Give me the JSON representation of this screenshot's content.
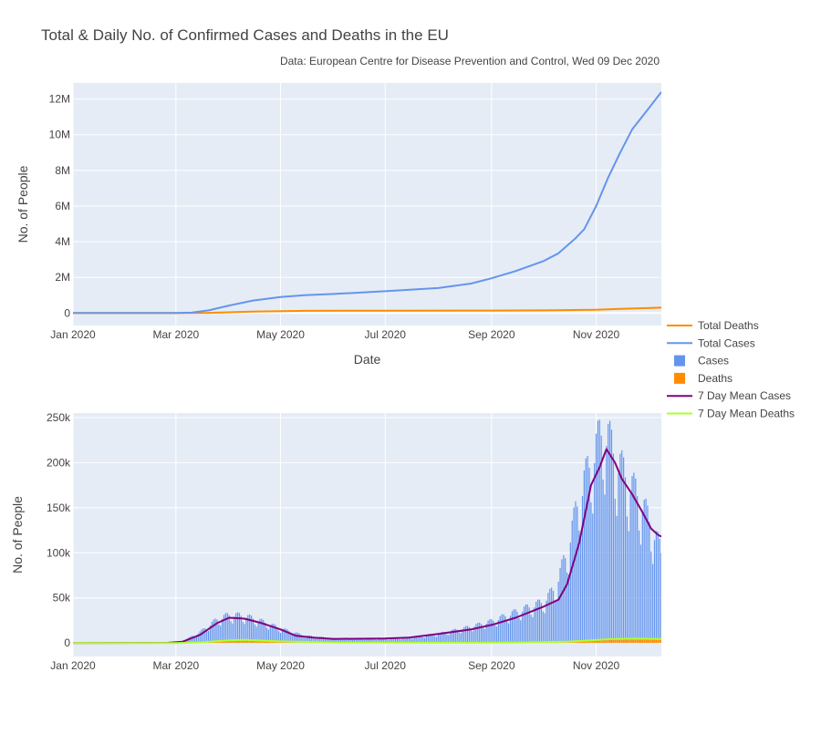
{
  "title": "Total & Daily No. of Confirmed Cases and Deaths in the EU",
  "subtitle": "Data: European Centre for Disease Prevention and Control, Wed 09 Dec 2020",
  "colors": {
    "plot_bg": "#E5ECF6",
    "grid": "#FFFFFF",
    "total_deaths": "#FF8C00",
    "total_cases": "#6495ED",
    "cases_bar": "#6495ED",
    "deaths_bar": "#FF8C00",
    "mean_cases": "#800080",
    "mean_deaths": "#ADFF2F"
  },
  "chart_data": [
    {
      "type": "line",
      "xlabel": "Date",
      "ylabel": "No. of People",
      "xlim": [
        "2020-01-01",
        "2020-12-09"
      ],
      "ylim": [
        -700000,
        12900000
      ],
      "x_ticks": [
        {
          "date": "2020-01-01",
          "label": "Jan 2020"
        },
        {
          "date": "2020-03-01",
          "label": "Mar 2020"
        },
        {
          "date": "2020-05-01",
          "label": "May 2020"
        },
        {
          "date": "2020-07-01",
          "label": "Jul 2020"
        },
        {
          "date": "2020-09-01",
          "label": "Sep 2020"
        },
        {
          "date": "2020-11-01",
          "label": "Nov 2020"
        }
      ],
      "y_ticks": [
        {
          "value": 0,
          "label": "0"
        },
        {
          "value": 2000000,
          "label": "2M"
        },
        {
          "value": 4000000,
          "label": "4M"
        },
        {
          "value": 6000000,
          "label": "6M"
        },
        {
          "value": 8000000,
          "label": "8M"
        },
        {
          "value": 10000000,
          "label": "10M"
        },
        {
          "value": 12000000,
          "label": "12M"
        }
      ],
      "series": [
        {
          "name": "Total Deaths",
          "color": "#FF8C00",
          "points": [
            [
              "2020-01-01",
              0
            ],
            [
              "2020-03-01",
              100
            ],
            [
              "2020-03-20",
              10000
            ],
            [
              "2020-04-15",
              80000
            ],
            [
              "2020-05-15",
              125000
            ],
            [
              "2020-07-01",
              135000
            ],
            [
              "2020-09-01",
              140000
            ],
            [
              "2020-10-01",
              150000
            ],
            [
              "2020-10-15",
              165000
            ],
            [
              "2020-11-01",
              185000
            ],
            [
              "2020-11-15",
              230000
            ],
            [
              "2020-12-01",
              275000
            ],
            [
              "2020-12-09",
              300000
            ]
          ]
        },
        {
          "name": "Total Cases",
          "color": "#6495ED",
          "points": [
            [
              "2020-01-01",
              0
            ],
            [
              "2020-03-01",
              2000
            ],
            [
              "2020-03-10",
              20000
            ],
            [
              "2020-03-20",
              150000
            ],
            [
              "2020-04-01",
              420000
            ],
            [
              "2020-04-15",
              700000
            ],
            [
              "2020-05-01",
              900000
            ],
            [
              "2020-05-15",
              1000000
            ],
            [
              "2020-06-01",
              1070000
            ],
            [
              "2020-07-01",
              1220000
            ],
            [
              "2020-08-01",
              1400000
            ],
            [
              "2020-08-20",
              1650000
            ],
            [
              "2020-09-01",
              1950000
            ],
            [
              "2020-09-15",
              2350000
            ],
            [
              "2020-10-01",
              2900000
            ],
            [
              "2020-10-10",
              3350000
            ],
            [
              "2020-10-20",
              4200000
            ],
            [
              "2020-10-25",
              4700000
            ],
            [
              "2020-11-01",
              6000000
            ],
            [
              "2020-11-08",
              7600000
            ],
            [
              "2020-11-15",
              9000000
            ],
            [
              "2020-11-22",
              10300000
            ],
            [
              "2020-12-01",
              11400000
            ],
            [
              "2020-12-09",
              12400000
            ]
          ]
        }
      ]
    },
    {
      "type": "bar",
      "xlabel": "",
      "ylabel": "No. of People",
      "xlim": [
        "2020-01-01",
        "2020-12-09"
      ],
      "ylim": [
        -15000,
        255000
      ],
      "x_ticks": [
        {
          "date": "2020-01-01",
          "label": "Jan 2020"
        },
        {
          "date": "2020-03-01",
          "label": "Mar 2020"
        },
        {
          "date": "2020-05-01",
          "label": "May 2020"
        },
        {
          "date": "2020-07-01",
          "label": "Jul 2020"
        },
        {
          "date": "2020-09-01",
          "label": "Sep 2020"
        },
        {
          "date": "2020-11-01",
          "label": "Nov 2020"
        }
      ],
      "y_ticks": [
        {
          "value": 0,
          "label": "0"
        },
        {
          "value": 50000,
          "label": "50k"
        },
        {
          "value": 100000,
          "label": "100k"
        },
        {
          "value": 150000,
          "label": "150k"
        },
        {
          "value": 200000,
          "label": "200k"
        },
        {
          "value": 250000,
          "label": "250k"
        }
      ],
      "series": [
        {
          "name": "Cases",
          "kind": "bar",
          "color": "#6495ED",
          "key_points": [
            [
              "2020-01-01",
              0
            ],
            [
              "2020-02-25",
              300
            ],
            [
              "2020-03-05",
              2000
            ],
            [
              "2020-03-15",
              12000
            ],
            [
              "2020-03-25",
              26000
            ],
            [
              "2020-04-01",
              31000
            ],
            [
              "2020-04-10",
              30000
            ],
            [
              "2020-04-20",
              24000
            ],
            [
              "2020-05-01",
              16000
            ],
            [
              "2020-05-15",
              8000
            ],
            [
              "2020-06-01",
              5000
            ],
            [
              "2020-07-01",
              5000
            ],
            [
              "2020-07-15",
              6000
            ],
            [
              "2020-08-01",
              10000
            ],
            [
              "2020-08-20",
              18000
            ],
            [
              "2020-09-01",
              24000
            ],
            [
              "2020-09-15",
              34000
            ],
            [
              "2020-10-01",
              45000
            ],
            [
              "2020-10-08",
              60000
            ],
            [
              "2020-10-15",
              100000
            ],
            [
              "2020-10-22",
              160000
            ],
            [
              "2020-10-29",
              200000
            ],
            [
              "2020-11-04",
              230000
            ],
            [
              "2020-11-06",
              235000
            ],
            [
              "2020-11-12",
              205000
            ],
            [
              "2020-11-19",
              180000
            ],
            [
              "2020-11-26",
              160000
            ],
            [
              "2020-12-03",
              130000
            ],
            [
              "2020-12-09",
              100000
            ]
          ]
        },
        {
          "name": "Deaths",
          "kind": "bar",
          "color": "#FF8C00",
          "key_points": [
            [
              "2020-01-01",
              0
            ],
            [
              "2020-03-01",
              0
            ],
            [
              "2020-03-15",
              800
            ],
            [
              "2020-04-01",
              3300
            ],
            [
              "2020-04-10",
              3600
            ],
            [
              "2020-05-01",
              2000
            ],
            [
              "2020-06-01",
              500
            ],
            [
              "2020-08-01",
              300
            ],
            [
              "2020-09-15",
              500
            ],
            [
              "2020-10-15",
              1400
            ],
            [
              "2020-11-10",
              4500
            ],
            [
              "2020-11-25",
              5000
            ],
            [
              "2020-12-09",
              4500
            ]
          ]
        },
        {
          "name": "7 Day Mean Cases",
          "kind": "line",
          "color": "#800080",
          "points": [
            [
              "2020-01-01",
              0
            ],
            [
              "2020-02-25",
              200
            ],
            [
              "2020-03-05",
              1500
            ],
            [
              "2020-03-15",
              9000
            ],
            [
              "2020-03-25",
              22000
            ],
            [
              "2020-04-01",
              28000
            ],
            [
              "2020-04-10",
              27000
            ],
            [
              "2020-04-20",
              22000
            ],
            [
              "2020-05-01",
              15000
            ],
            [
              "2020-05-10",
              8000
            ],
            [
              "2020-05-20",
              6000
            ],
            [
              "2020-06-01",
              4500
            ],
            [
              "2020-07-01",
              5000
            ],
            [
              "2020-07-15",
              6000
            ],
            [
              "2020-08-01",
              10000
            ],
            [
              "2020-08-20",
              15000
            ],
            [
              "2020-09-01",
              20000
            ],
            [
              "2020-09-15",
              28000
            ],
            [
              "2020-10-01",
              40000
            ],
            [
              "2020-10-10",
              48000
            ],
            [
              "2020-10-15",
              65000
            ],
            [
              "2020-10-22",
              110000
            ],
            [
              "2020-10-29",
              175000
            ],
            [
              "2020-11-03",
              195000
            ],
            [
              "2020-11-07",
              215000
            ],
            [
              "2020-11-12",
              200000
            ],
            [
              "2020-11-16",
              182000
            ],
            [
              "2020-11-22",
              165000
            ],
            [
              "2020-11-28",
              145000
            ],
            [
              "2020-12-03",
              127000
            ],
            [
              "2020-12-07",
              120000
            ],
            [
              "2020-12-09",
              118000
            ]
          ]
        },
        {
          "name": "7 Day Mean Deaths",
          "kind": "line",
          "color": "#ADFF2F",
          "points": [
            [
              "2020-01-01",
              0
            ],
            [
              "2020-03-01",
              0
            ],
            [
              "2020-03-15",
              700
            ],
            [
              "2020-04-01",
              3000
            ],
            [
              "2020-04-10",
              3400
            ],
            [
              "2020-05-01",
              1800
            ],
            [
              "2020-06-01",
              500
            ],
            [
              "2020-08-01",
              300
            ],
            [
              "2020-09-15",
              500
            ],
            [
              "2020-10-15",
              1400
            ],
            [
              "2020-11-10",
              4300
            ],
            [
              "2020-11-25",
              4800
            ],
            [
              "2020-12-09",
              4300
            ]
          ]
        }
      ]
    }
  ],
  "legend": {
    "placement": "right",
    "items": [
      {
        "label": "Total Deaths",
        "symbol": "line",
        "color": "#FF8C00"
      },
      {
        "label": "Total Cases",
        "symbol": "line",
        "color": "#6495ED"
      },
      {
        "label": "Cases",
        "symbol": "square",
        "color": "#6495ED"
      },
      {
        "label": "Deaths",
        "symbol": "square",
        "color": "#FF8C00"
      },
      {
        "label": "7 Day Mean Cases",
        "symbol": "line",
        "color": "#800080"
      },
      {
        "label": "7 Day Mean Deaths",
        "symbol": "line",
        "color": "#ADFF2F"
      }
    ]
  }
}
